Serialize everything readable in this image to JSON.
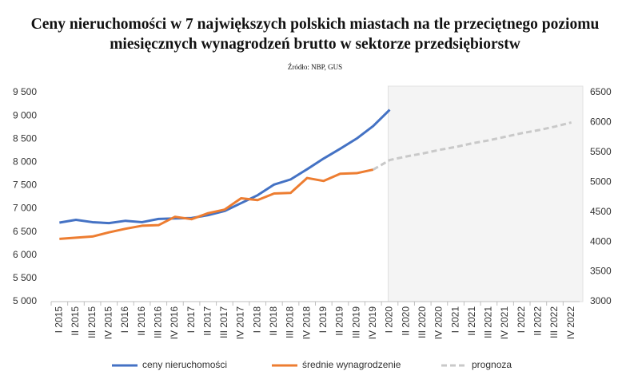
{
  "chart_data": {
    "type": "line",
    "title": "Ceny nieruchomości w 7 największych polskich miastach na tle przeciętnego poziomu miesięcznych wynagrodzeń brutto w sektorze przedsiębiorstw",
    "subtitle": "Źródło: NBP, GUS",
    "categories": [
      "I 2015",
      "II 2015",
      "III 2015",
      "IV 2015",
      "I 2016",
      "II 2016",
      "III 2016",
      "IV 2016",
      "I 2017",
      "II 2017",
      "III 2017",
      "IV 2017",
      "I 2018",
      "II 2018",
      "III 2018",
      "IV 2018",
      "I 2019",
      "II 2019",
      "III 2019",
      "IV 2019",
      "I 2020",
      "II 2020",
      "III 2020",
      "IV 2020",
      "I 2021",
      "II 2021",
      "III 2021",
      "IV 2021",
      "I 2022",
      "II 2022",
      "III 2022",
      "IV 2022"
    ],
    "series": [
      {
        "name": "ceny nieruchomości",
        "color": "#4472c4",
        "axis": "y",
        "values": [
          6700,
          6760,
          6710,
          6690,
          6740,
          6710,
          6780,
          6790,
          6800,
          6860,
          6950,
          7120,
          7290,
          7520,
          7630,
          7850,
          8080,
          8290,
          8510,
          8780,
          9130,
          null,
          null,
          null,
          null,
          null,
          null,
          null,
          null,
          null,
          null,
          null
        ]
      },
      {
        "name": "średnie wynagrodzenie",
        "color": "#ed7d31",
        "axis": "y2",
        "values": [
          4050,
          4070,
          4090,
          4160,
          4220,
          4270,
          4280,
          4420,
          4380,
          4480,
          4540,
          4730,
          4700,
          4810,
          4820,
          5070,
          5020,
          5140,
          5150,
          5210,
          null,
          null,
          null,
          null,
          null,
          null,
          null,
          null,
          null,
          null,
          null,
          null
        ]
      },
      {
        "name": "prognoza",
        "color": "#c9c9c9",
        "axis": "y2",
        "dashed": true,
        "values": [
          null,
          null,
          null,
          null,
          null,
          null,
          null,
          null,
          null,
          null,
          null,
          null,
          null,
          null,
          null,
          null,
          null,
          null,
          null,
          5210,
          5370,
          5430,
          5480,
          5540,
          5590,
          5650,
          5700,
          5760,
          5820,
          5870,
          5930,
          6000
        ]
      }
    ],
    "ylim": [
      5000,
      9500
    ],
    "yticks": [
      {
        "value": 5000,
        "label": "5 000"
      },
      {
        "value": 5500,
        "label": "5 500"
      },
      {
        "value": 6000,
        "label": "6 000"
      },
      {
        "value": 6500,
        "label": "6 500"
      },
      {
        "value": 7000,
        "label": "7 000"
      },
      {
        "value": 7500,
        "label": "7 500"
      },
      {
        "value": 8000,
        "label": "8 000"
      },
      {
        "value": 8500,
        "label": "8 500"
      },
      {
        "value": 9000,
        "label": "9 000"
      },
      {
        "value": 9500,
        "label": "9 500"
      }
    ],
    "y2lim": [
      3000,
      6500
    ],
    "y2ticks": [
      3000,
      3500,
      4000,
      4500,
      5000,
      5500,
      6000,
      6500
    ],
    "legend": "bottom"
  }
}
